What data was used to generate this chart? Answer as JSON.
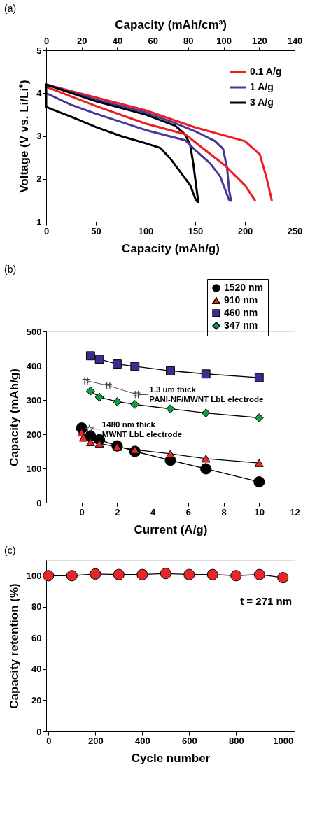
{
  "chart_data": [
    {
      "type": "line",
      "title": "(a)",
      "xlabel": "Capacity (mAh/g)",
      "ylabel": "Voltage (V vs. Li/Li⁺)",
      "x2label": "Capacity (mAh/cm³)",
      "xlim": [
        0,
        250
      ],
      "xticks": [
        0,
        50,
        100,
        150,
        200,
        250
      ],
      "x2lim": [
        0,
        140
      ],
      "x2ticks": [
        0,
        20,
        40,
        60,
        80,
        100,
        120,
        140
      ],
      "ylim": [
        1,
        5
      ],
      "yticks": [
        1,
        2,
        3,
        4,
        5
      ],
      "legend": "top right",
      "marker": "none",
      "series": [
        {
          "name": "0.1 A/g",
          "color": "#ee1c24",
          "x": [
            0,
            50,
            100,
            150,
            200,
            215,
            222,
            227
          ],
          "values": [
            4.2,
            3.9,
            3.6,
            3.2,
            2.88,
            2.57,
            2.0,
            1.5
          ]
        },
        {
          "name": "1 A/g",
          "color": "#4b3597",
          "x": [
            0,
            50,
            100,
            130,
            150,
            170,
            178,
            182,
            184,
            186
          ],
          "values": [
            4.2,
            3.85,
            3.55,
            3.3,
            3.11,
            2.88,
            2.7,
            2.26,
            1.75,
            1.49
          ]
        },
        {
          "name": "3 A/g",
          "color": "#000000",
          "x": [
            0,
            50,
            100,
            130,
            140,
            145,
            148,
            150,
            152,
            153
          ],
          "values": [
            4.2,
            3.81,
            3.5,
            3.24,
            3.03,
            2.78,
            2.36,
            2.0,
            1.64,
            1.46
          ]
        },
        {
          "color": "#ee1c24",
          "x": [
            0,
            50,
            100,
            140,
            160,
            180,
            200,
            210
          ],
          "values": [
            4.15,
            3.7,
            3.29,
            3.04,
            2.67,
            2.31,
            1.85,
            1.5
          ]
        },
        {
          "color": "#4b3597",
          "x": [
            0,
            25,
            50,
            100,
            140,
            150,
            165,
            175,
            184
          ],
          "values": [
            4.0,
            3.73,
            3.52,
            3.14,
            2.9,
            2.67,
            2.36,
            2.06,
            1.51
          ]
        },
        {
          "color": "#000000",
          "x": [
            0,
            0,
            5,
            25,
            50,
            75,
            100,
            115,
            125,
            135,
            145,
            150,
            152
          ],
          "values": [
            4.2,
            3.68,
            3.63,
            3.45,
            3.21,
            3.0,
            2.83,
            2.72,
            2.47,
            2.16,
            1.85,
            1.54,
            1.47
          ]
        }
      ]
    },
    {
      "type": "line",
      "title": "(b)",
      "xlabel": "Current (A/g)",
      "ylabel": "Capacity (mAh/g)",
      "xlim": [
        -2,
        12
      ],
      "xticks": [
        0,
        2,
        4,
        6,
        8,
        10,
        12
      ],
      "ylim": [
        0,
        500
      ],
      "yticks": [
        0,
        100,
        200,
        300,
        400,
        500
      ],
      "legend": "top",
      "series": [
        {
          "name": "1520 nm",
          "color": "#000000",
          "marker": "circle",
          "x": [
            0,
            0.5,
            1,
            2,
            3,
            5,
            7,
            10
          ],
          "values": [
            218,
            195,
            184,
            166,
            150,
            124,
            99,
            61
          ]
        },
        {
          "name": "910 nm",
          "color": "#ee2a24",
          "marker": "triangle",
          "x": [
            0,
            0.1,
            0.5,
            1,
            2,
            3,
            5,
            7,
            10
          ],
          "values": [
            205,
            190,
            177,
            173,
            163,
            155,
            143,
            129,
            116
          ]
        },
        {
          "name": "460 nm",
          "color": "#3d2d8f",
          "marker": "square",
          "x": [
            0.5,
            1,
            2,
            3,
            5,
            7,
            10
          ],
          "values": [
            429,
            419,
            405,
            398,
            385,
            376,
            365
          ]
        },
        {
          "name": "347 nm",
          "color": "#139a48",
          "marker": "diamond",
          "x": [
            0.5,
            1,
            2,
            3,
            5,
            7,
            10
          ],
          "values": [
            326,
            308,
            295,
            287,
            274,
            262,
            248
          ]
        },
        {
          "color": "#333333",
          "marker": "cross",
          "x": [
            0.25,
            1.5,
            3.1
          ],
          "values": [
            356,
            342,
            316
          ]
        },
        {
          "type": "scatter",
          "color": "#333333",
          "marker": "star",
          "x": [
            0.44
          ],
          "values": [
            215
          ]
        }
      ],
      "annotations": [
        {
          "text": "1.3 um thick\nPANI-NF/MWNT LbL electrode",
          "x": 3.1,
          "y": 316
        },
        {
          "text": "1480 nm thick\nMWNT LbL electrode",
          "x": 0.44,
          "y": 215
        }
      ]
    },
    {
      "type": "line",
      "title": "(c)",
      "xlabel": "Cycle number",
      "ylabel": "Capacity retention (%)",
      "xlim": [
        -10,
        1050
      ],
      "xticks": [
        0,
        200,
        400,
        600,
        800,
        1000
      ],
      "ylim": [
        0,
        110
      ],
      "yticks": [
        0,
        20,
        40,
        60,
        80,
        100
      ],
      "marker": "circle",
      "series": [
        {
          "color": "#e8262a",
          "x": [
            0,
            100,
            200,
            300,
            400,
            500,
            600,
            700,
            800,
            900,
            1000
          ],
          "values": [
            100,
            100,
            101.1,
            100.7,
            100.7,
            101.4,
            100.7,
            100.7,
            100,
            100.7,
            98.7
          ]
        }
      ],
      "annotations": [
        "t = 271 nm"
      ]
    }
  ]
}
